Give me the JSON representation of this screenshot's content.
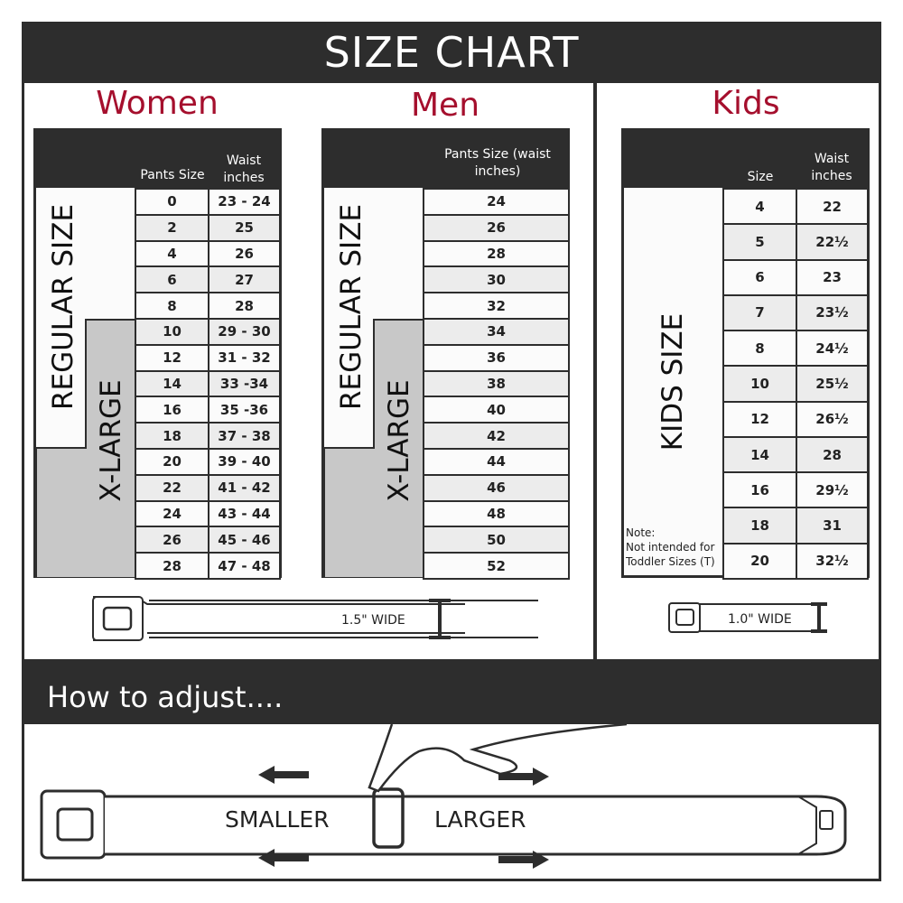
{
  "header": {
    "title": "SIZE CHART"
  },
  "women": {
    "title": "Women",
    "col1": "Pants Size",
    "col2": "Waist inches",
    "regular_label": "REGULAR SIZE",
    "xlarge_label": "X-LARGE",
    "rows": [
      [
        "0",
        "23 - 24"
      ],
      [
        "2",
        "25"
      ],
      [
        "4",
        "26"
      ],
      [
        "6",
        "27"
      ],
      [
        "8",
        "28"
      ],
      [
        "10",
        "29 - 30"
      ],
      [
        "12",
        "31 - 32"
      ],
      [
        "14",
        "33 -34"
      ],
      [
        "16",
        "35 -36"
      ],
      [
        "18",
        "37 - 38"
      ],
      [
        "20",
        "39 - 40"
      ],
      [
        "22",
        "41 - 42"
      ],
      [
        "24",
        "43 - 44"
      ],
      [
        "26",
        "45 - 46"
      ],
      [
        "28",
        "47 - 48"
      ]
    ],
    "belt_width": "1.5\" WIDE"
  },
  "men": {
    "title": "Men",
    "col1": "Pants Size (waist inches)",
    "regular_label": "REGULAR SIZE",
    "xlarge_label": "X-LARGE",
    "rows": [
      "24",
      "26",
      "28",
      "30",
      "32",
      "34",
      "36",
      "38",
      "40",
      "42",
      "44",
      "46",
      "48",
      "50",
      "52"
    ]
  },
  "kids": {
    "title": "Kids",
    "col1": "Size",
    "col2": "Waist inches",
    "label": "KIDS SIZE",
    "note": "Note:",
    "note_text": "Not intended for Toddler Sizes (T)",
    "rows": [
      [
        "4",
        "22"
      ],
      [
        "5",
        "22½"
      ],
      [
        "6",
        "23"
      ],
      [
        "7",
        "23½"
      ],
      [
        "8",
        "24½"
      ],
      [
        "10",
        "25½"
      ],
      [
        "12",
        "26½"
      ],
      [
        "14",
        "28"
      ],
      [
        "16",
        "29½"
      ],
      [
        "18",
        "31"
      ],
      [
        "20",
        "32½"
      ]
    ],
    "belt_width": "1.0\" WIDE"
  },
  "adjust": {
    "title": "How to adjust....",
    "smaller": "SMALLER",
    "larger": "LARGER"
  },
  "colors": {
    "dark": "#2d2d2d",
    "accent": "#a50f2d",
    "xlarge_fill": "#c8c8c8"
  }
}
